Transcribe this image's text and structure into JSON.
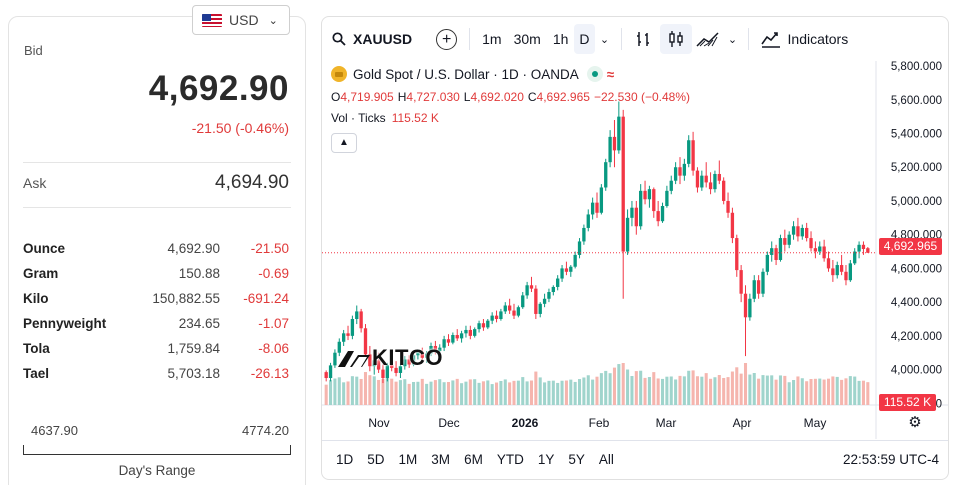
{
  "currency": {
    "code": "USD",
    "flag": "us-flag-icon"
  },
  "bid": {
    "label": "Bid",
    "value": "4,692.90",
    "change": "-21.50 (-0.46%)"
  },
  "ask": {
    "label": "Ask",
    "value": "4,694.90"
  },
  "units": [
    {
      "name": "Ounce",
      "price": "4,692.90",
      "change": "-21.50"
    },
    {
      "name": "Gram",
      "price": "150.88",
      "change": "-0.69"
    },
    {
      "name": "Kilo",
      "price": "150,882.55",
      "change": "-691.24"
    },
    {
      "name": "Pennyweight",
      "price": "234.65",
      "change": "-1.07"
    },
    {
      "name": "Tola",
      "price": "1,759.84",
      "change": "-8.06"
    },
    {
      "name": "Tael",
      "price": "5,703.18",
      "change": "-26.13"
    }
  ],
  "day_range": {
    "low": "4637.90",
    "high": "4774.20",
    "label": "Day's Range"
  },
  "toolbar": {
    "symbol": "XAUUSD",
    "intervals": [
      "1m",
      "30m",
      "1h",
      "D"
    ],
    "active_interval": "D",
    "indicators_label": "Indicators"
  },
  "legend": {
    "title": "Gold Spot / U.S. Dollar · 1D · OANDA",
    "o_label": "O",
    "o": "4,719.905",
    "h_label": "H",
    "h": "4,727.030",
    "l_label": "L",
    "l": "4,692.020",
    "c_label": "C",
    "c": "4,692.965",
    "change": "−22.530 (−0.48%)",
    "vol_label": "Vol · Ticks",
    "vol_value": "115.52 K"
  },
  "watermark": "KITCO",
  "last_price_tag": "4,692.965",
  "volume_tag": "115.52 K",
  "ranges": [
    "1D",
    "5D",
    "1M",
    "3M",
    "6M",
    "YTD",
    "1Y",
    "5Y",
    "All"
  ],
  "clock": "22:53:59 UTC-4",
  "colors": {
    "up": "#089981",
    "down": "#f23645",
    "vol_up": "#9fd4cc",
    "vol_down": "#f5b5ae",
    "brand_gold": "#f0b429"
  },
  "chart_data": {
    "type": "candlestick",
    "symbol": "XAUUSD",
    "interval": "1D",
    "x_ticks": [
      "Nov",
      "Dec",
      "2026",
      "Feb",
      "Mar",
      "Apr",
      "May"
    ],
    "y_ticks": [
      3800,
      4000,
      4200,
      4400,
      4600,
      4800,
      5000,
      5200,
      5400,
      5600,
      5800
    ],
    "ylim": [
      3790,
      5830
    ],
    "last_price": 4692.965,
    "series": [
      [
        3985,
        3995,
        3930,
        3950
      ],
      [
        3950,
        4040,
        3930,
        4025
      ],
      [
        4025,
        4120,
        4010,
        4100
      ],
      [
        4100,
        4185,
        4080,
        4165
      ],
      [
        4165,
        4235,
        4140,
        4215
      ],
      [
        4215,
        4260,
        4175,
        4200
      ],
      [
        4200,
        4320,
        4180,
        4300
      ],
      [
        4300,
        4380,
        4270,
        4345
      ],
      [
        4345,
        4360,
        4220,
        4245
      ],
      [
        4245,
        4270,
        4050,
        4090
      ],
      [
        4090,
        4140,
        3990,
        4020
      ],
      [
        4020,
        4080,
        3970,
        4055
      ],
      [
        4055,
        4100,
        3980,
        4000
      ],
      [
        4000,
        4030,
        3920,
        3950
      ],
      [
        3950,
        4040,
        3930,
        4025
      ],
      [
        4025,
        4060,
        3990,
        4010
      ],
      [
        4010,
        4050,
        3960,
        3980
      ],
      [
        3980,
        4040,
        3950,
        4020
      ],
      [
        4020,
        4080,
        4000,
        4060
      ],
      [
        4060,
        4085,
        4010,
        4030
      ],
      [
        4030,
        4100,
        4020,
        4085
      ],
      [
        4085,
        4120,
        4060,
        4105
      ],
      [
        4105,
        4130,
        4050,
        4070
      ],
      [
        4070,
        4110,
        4040,
        4095
      ],
      [
        4095,
        4160,
        4080,
        4140
      ],
      [
        4140,
        4170,
        4090,
        4110
      ],
      [
        4110,
        4150,
        4080,
        4130
      ],
      [
        4130,
        4200,
        4110,
        4180
      ],
      [
        4180,
        4210,
        4140,
        4160
      ],
      [
        4160,
        4220,
        4150,
        4205
      ],
      [
        4205,
        4240,
        4170,
        4185
      ],
      [
        4185,
        4230,
        4160,
        4215
      ],
      [
        4215,
        4260,
        4190,
        4235
      ],
      [
        4235,
        4260,
        4180,
        4200
      ],
      [
        4200,
        4250,
        4190,
        4240
      ],
      [
        4240,
        4290,
        4220,
        4275
      ],
      [
        4275,
        4300,
        4230,
        4250
      ],
      [
        4250,
        4300,
        4240,
        4290
      ],
      [
        4290,
        4340,
        4270,
        4320
      ],
      [
        4320,
        4350,
        4280,
        4300
      ],
      [
        4300,
        4360,
        4290,
        4345
      ],
      [
        4345,
        4400,
        4330,
        4380
      ],
      [
        4380,
        4420,
        4330,
        4350
      ],
      [
        4350,
        4390,
        4300,
        4320
      ],
      [
        4320,
        4380,
        4310,
        4370
      ],
      [
        4370,
        4460,
        4360,
        4440
      ],
      [
        4440,
        4520,
        4420,
        4500
      ],
      [
        4500,
        4550,
        4460,
        4480
      ],
      [
        4480,
        4500,
        4300,
        4330
      ],
      [
        4330,
        4400,
        4310,
        4390
      ],
      [
        4390,
        4450,
        4370,
        4420
      ],
      [
        4420,
        4480,
        4400,
        4460
      ],
      [
        4460,
        4500,
        4440,
        4490
      ],
      [
        4490,
        4560,
        4470,
        4540
      ],
      [
        4540,
        4620,
        4520,
        4600
      ],
      [
        4600,
        4640,
        4560,
        4580
      ],
      [
        4580,
        4620,
        4550,
        4610
      ],
      [
        4610,
        4700,
        4600,
        4680
      ],
      [
        4680,
        4780,
        4660,
        4760
      ],
      [
        4760,
        4860,
        4740,
        4840
      ],
      [
        4840,
        4950,
        4820,
        4920
      ],
      [
        4920,
        5020,
        4890,
        4990
      ],
      [
        4990,
        5050,
        4900,
        4930
      ],
      [
        4930,
        5100,
        4920,
        5080
      ],
      [
        5080,
        5250,
        5060,
        5230
      ],
      [
        5230,
        5420,
        5200,
        5380
      ],
      [
        5380,
        5480,
        5200,
        5300
      ],
      [
        5300,
        5590,
        5280,
        5500
      ],
      [
        5500,
        5540,
        4420,
        4700
      ],
      [
        4700,
        4950,
        4680,
        4900
      ],
      [
        4900,
        5000,
        4850,
        4960
      ],
      [
        4960,
        5000,
        4800,
        4850
      ],
      [
        4850,
        5100,
        4830,
        5060
      ],
      [
        5060,
        5120,
        4980,
        5010
      ],
      [
        5010,
        5090,
        4960,
        5070
      ],
      [
        5070,
        5080,
        4900,
        4940
      ],
      [
        4940,
        5000,
        4850,
        4880
      ],
      [
        4880,
        4990,
        4870,
        4970
      ],
      [
        4970,
        5090,
        4960,
        5060
      ],
      [
        5060,
        5150,
        5040,
        5120
      ],
      [
        5120,
        5230,
        5100,
        5200
      ],
      [
        5200,
        5260,
        5100,
        5150
      ],
      [
        5150,
        5250,
        5120,
        5220
      ],
      [
        5220,
        5390,
        5200,
        5360
      ],
      [
        5360,
        5410,
        5150,
        5180
      ],
      [
        5180,
        5200,
        5050,
        5080
      ],
      [
        5080,
        5180,
        5060,
        5150
      ],
      [
        5150,
        5230,
        5080,
        5110
      ],
      [
        5110,
        5170,
        5040,
        5070
      ],
      [
        5070,
        5180,
        5050,
        5160
      ],
      [
        5160,
        5240,
        5100,
        5120
      ],
      [
        5120,
        5140,
        4980,
        5000
      ],
      [
        5000,
        5050,
        4900,
        4930
      ],
      [
        4930,
        4960,
        4750,
        4780
      ],
      [
        4780,
        4800,
        4550,
        4590
      ],
      [
        4590,
        4620,
        4400,
        4450
      ],
      [
        4450,
        4500,
        4080,
        4310
      ],
      [
        4310,
        4450,
        4290,
        4420
      ],
      [
        4420,
        4560,
        4400,
        4530
      ],
      [
        4530,
        4560,
        4420,
        4450
      ],
      [
        4450,
        4600,
        4430,
        4580
      ],
      [
        4580,
        4700,
        4560,
        4680
      ],
      [
        4680,
        4760,
        4640,
        4720
      ],
      [
        4720,
        4740,
        4620,
        4650
      ],
      [
        4650,
        4800,
        4640,
        4780
      ],
      [
        4780,
        4830,
        4700,
        4740
      ],
      [
        4740,
        4820,
        4720,
        4800
      ],
      [
        4800,
        4880,
        4770,
        4850
      ],
      [
        4850,
        4900,
        4760,
        4790
      ],
      [
        4790,
        4860,
        4770,
        4840
      ],
      [
        4840,
        4870,
        4760,
        4780
      ],
      [
        4780,
        4820,
        4700,
        4720
      ],
      [
        4720,
        4760,
        4660,
        4700
      ],
      [
        4700,
        4760,
        4680,
        4730
      ],
      [
        4730,
        4770,
        4640,
        4660
      ],
      [
        4660,
        4700,
        4580,
        4600
      ],
      [
        4600,
        4650,
        4520,
        4560
      ],
      [
        4560,
        4640,
        4540,
        4620
      ],
      [
        4620,
        4680,
        4560,
        4580
      ],
      [
        4580,
        4620,
        4500,
        4530
      ],
      [
        4530,
        4650,
        4520,
        4630
      ],
      [
        4630,
        4720,
        4620,
        4700
      ],
      [
        4700,
        4760,
        4660,
        4740
      ],
      [
        4740,
        4760,
        4680,
        4715
      ],
      [
        4719.905,
        4727.03,
        4692.02,
        4692.965
      ]
    ],
    "volume_scale_max": 1000
  }
}
